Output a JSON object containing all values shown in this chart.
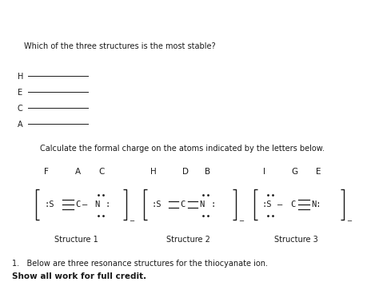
{
  "title_bold": "Show all work for full credit.",
  "question_text": "1.   Below are three resonance structures for the thiocyanate ion.",
  "struct1_label": "Structure 1",
  "struct2_label": "Structure 2",
  "struct3_label": "Structure 3",
  "calc_text": "Calculate the formal charge on the atoms indicated by the letters below.",
  "line_labels": [
    "A",
    "C",
    "E",
    "H"
  ],
  "final_question": "Which of the three structures is the most stable?",
  "bg_color": "#ffffff",
  "text_color": "#1a1a1a"
}
